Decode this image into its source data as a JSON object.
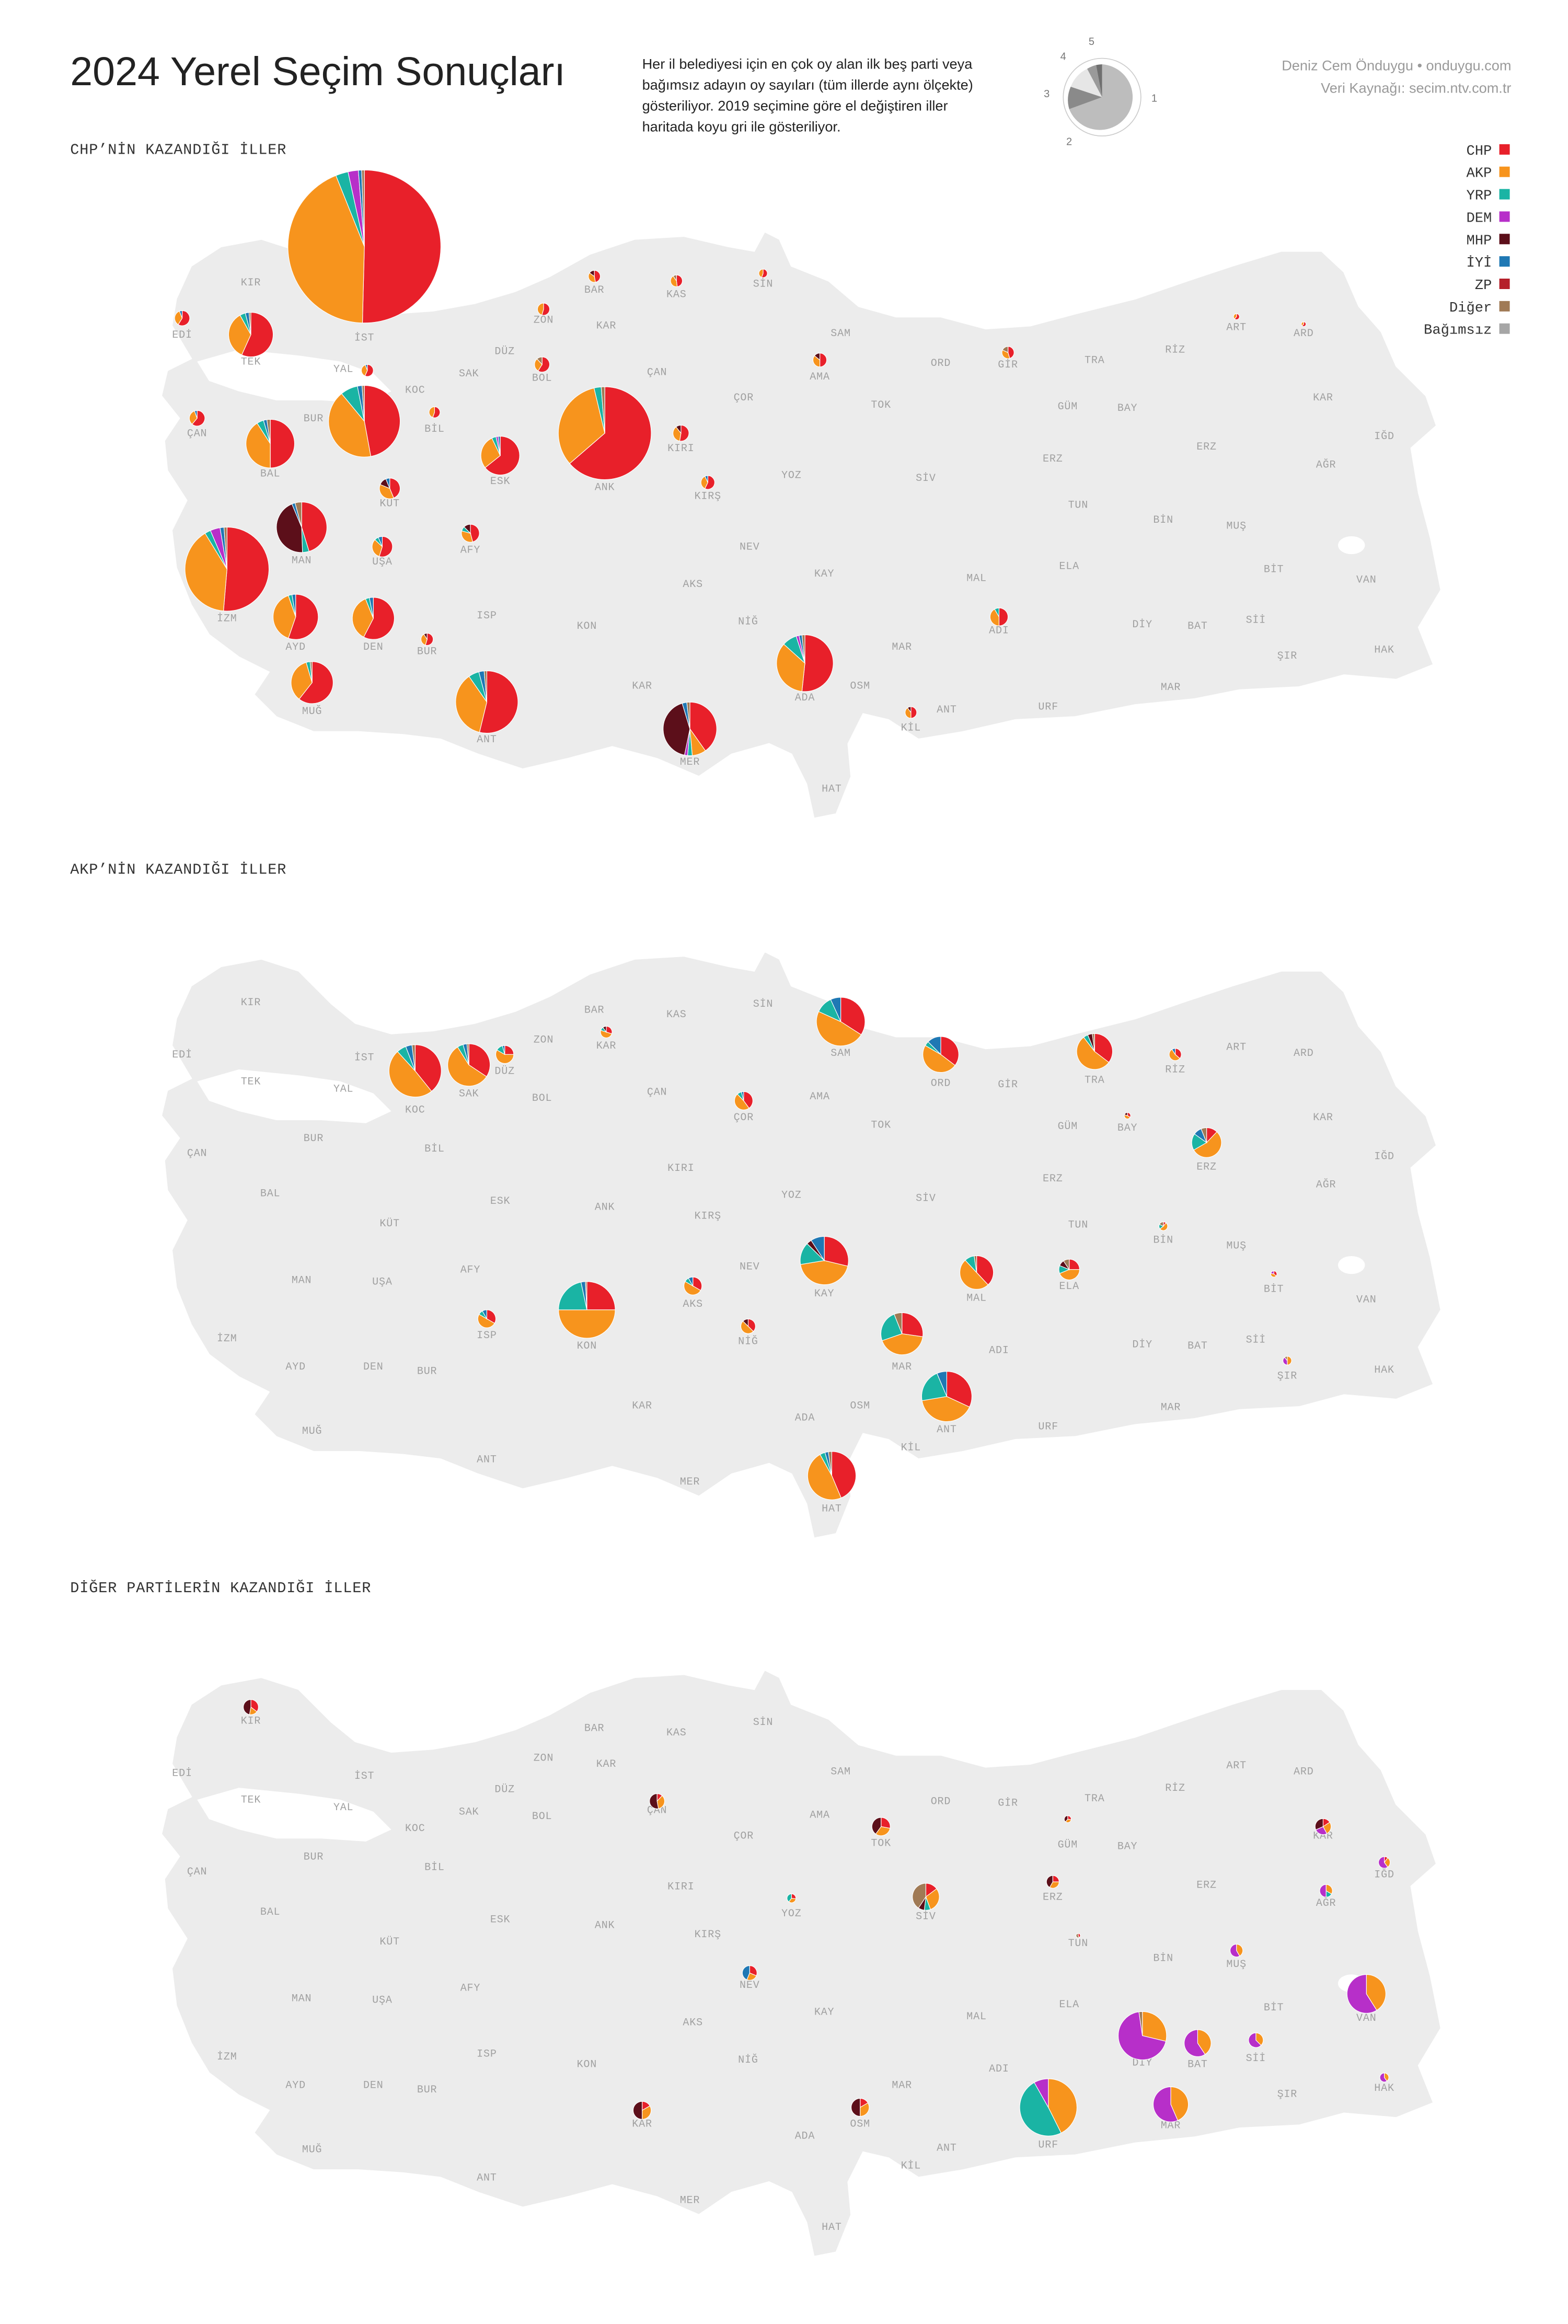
{
  "header": {
    "title": "2024 Yerel Seçim Sonuçları",
    "description": [
      "Her il belediyesi için en çok oy alan ilk beş parti veya",
      "bağımsız adayın oy sayıları (tüm illerde aynı ölçekte)",
      "gösteriliyor. 2019 seçimine göre el değiştiren iller",
      "haritada koyu gri ile gösteriliyor."
    ],
    "credits": [
      "Deniz Cem Önduygu • onduygu.com",
      "Veri Kaynağı: secim.ntv.com.tr"
    ],
    "key_labels": [
      "1",
      "2",
      "3",
      "4",
      "5"
    ]
  },
  "legend": [
    {
      "name": "CHP",
      "color": "#e8202a"
    },
    {
      "name": "AKP",
      "color": "#f7941d"
    },
    {
      "name": "YRP",
      "color": "#1ab4a4"
    },
    {
      "name": "DEM",
      "color": "#b72fc9"
    },
    {
      "name": "MHP",
      "color": "#5c0f1a"
    },
    {
      "name": "İYİ",
      "color": "#1f78b4"
    },
    {
      "name": "ZP",
      "color": "#b5202a"
    },
    {
      "name": "Diğer",
      "color": "#a07a55"
    },
    {
      "name": "Bağımsız",
      "color": "#a6a6a6"
    }
  ],
  "provinces": [
    "EDİ",
    "KIR",
    "TEK",
    "İST",
    "YAL",
    "KOC",
    "SAK",
    "DÜZ",
    "ZON",
    "BAR",
    "KAR",
    "KAS",
    "SİN",
    "SAM",
    "ORD",
    "GİR",
    "TRA",
    "RİZ",
    "ART",
    "ARD",
    "BOL",
    "ÇAN",
    "AMA",
    "TOK",
    "ÇOR",
    "BUR",
    "BİL",
    "ÇAN",
    "BAL",
    "KÜT",
    "ESK",
    "ANK",
    "KIRI",
    "YOZ",
    "SİV",
    "GÜM",
    "BAY",
    "KAR",
    "IĞD",
    "ERZ",
    "AĞR",
    "ERZ",
    "TUN",
    "BİN",
    "MUŞ",
    "BİT",
    "VAN",
    "MAN",
    "UŞA",
    "AFY",
    "KIRŞ",
    "NEV",
    "KAY",
    "AKS",
    "MAL",
    "ELA",
    "ADI",
    "DİY",
    "BAT",
    "Sİİ",
    "ŞIR",
    "HAK",
    "İZM",
    "AYD",
    "DEN",
    "BUR",
    "ISP",
    "KON",
    "NİĞ",
    "KAR",
    "ADA",
    "OSM",
    "MAR",
    "ANT",
    "KİL",
    "URF",
    "HAT",
    "MER",
    "ANT",
    "MUĞ",
    "MAR"
  ],
  "maps": [
    {
      "title": "CHP’NİN KAZANDIĞI İLLER",
      "pies": [
        [
          4400,
          3800,
          230,
          190,
          0,
          60,
          0,
          50,
          0
        ],
        [
          2050,
          1050,
          80,
          0,
          0,
          0,
          0,
          40,
          0
        ],
        [
          1350,
          1050,
          60,
          100,
          0,
          40,
          0,
          30,
          0
        ],
        [
          900,
          800,
          150,
          0,
          0,
          40,
          0,
          20,
          0
        ],
        [
          780,
          530,
          80,
          0,
          0,
          40,
          0,
          20,
          0
        ],
        [
          620,
          420,
          100,
          20,
          0,
          20,
          0,
          20,
          0
        ],
        [
          430,
          0,
          40,
          0,
          420,
          20,
          0,
          40,
          0
        ],
        [
          430,
          90,
          30,
          20,
          450,
          30,
          0,
          20,
          0
        ],
        [
          440,
          360,
          40,
          0,
          0,
          20,
          0,
          20,
          0
        ],
        [
          420,
          300,
          20,
          0,
          0,
          20,
          0,
          0,
          0
        ],
        [
          380,
          240,
          20,
          0,
          0,
          20,
          0,
          0,
          0
        ],
        [
          400,
          230,
          20,
          0,
          0,
          0,
          0,
          10,
          0
        ],
        [
          420,
          260,
          30,
          0,
          0,
          20,
          0,
          10,
          0
        ],
        [
          360,
          160,
          20,
          10,
          0,
          10,
          0,
          0,
          0
        ],
        [
          85,
          50,
          10,
          0,
          0,
          10,
          0,
          0,
          0
        ],
        [
          70,
          60,
          0,
          0,
          20,
          10,
          0,
          0,
          0
        ],
        [
          55,
          40,
          10,
          0,
          15,
          0,
          0,
          0,
          0
        ],
        [
          25,
          20,
          0,
          0,
          0,
          0,
          0,
          0,
          0
        ],
        [
          30,
          20,
          0,
          0,
          5,
          0,
          0,
          0,
          0
        ],
        [
          50,
          35,
          0,
          0,
          10,
          0,
          0,
          0,
          0
        ],
        [
          40,
          25,
          0,
          0,
          0,
          5,
          0,
          0,
          0
        ],
        [
          50,
          30,
          0,
          0,
          0,
          5,
          0,
          0,
          0
        ],
        [
          55,
          30,
          0,
          0,
          0,
          5,
          0,
          0,
          0
        ],
        [
          30,
          20,
          0,
          0,
          0,
          3,
          0,
          0,
          0
        ],
        [
          30,
          25,
          0,
          0,
          0,
          0,
          0,
          0,
          0
        ],
        [
          25,
          20,
          0,
          0,
          8,
          0,
          0,
          0,
          0
        ],
        [
          25,
          22,
          0,
          0,
          0,
          0,
          0,
          5,
          0
        ],
        [
          15,
          12,
          0,
          0,
          0,
          0,
          0,
          0,
          0
        ],
        [
          50,
          25,
          0,
          0,
          0,
          0,
          0,
          10,
          0
        ],
        [
          35,
          25,
          0,
          0,
          10,
          0,
          0,
          0,
          0
        ],
        [
          25,
          20,
          0,
          0,
          0,
          0,
          0,
          10,
          0
        ],
        [
          8,
          5,
          0,
          0,
          0,
          0,
          0,
          0,
          0
        ],
        [
          5,
          3,
          0,
          0,
          0,
          0,
          0,
          0,
          0
        ],
        [
          60,
          50,
          10,
          0,
          0,
          0,
          0,
          0,
          0
        ],
        [
          25,
          20,
          0,
          0,
          5,
          0,
          0,
          0,
          0
        ]
      ]
    },
    {
      "title": "AKP’NİN KAZANDIĞI İLLER",
      "pies": [
        [
          400,
          500,
          60,
          0,
          0,
          40,
          0,
          20,
          0
        ],
        [
          230,
          380,
          30,
          0,
          0,
          20,
          0,
          10,
          0
        ],
        [
          30,
          70,
          15,
          0,
          0,
          5,
          0,
          0,
          0
        ],
        [
          15,
          25,
          5,
          0,
          5,
          0,
          0,
          0,
          0
        ],
        [
          300,
          420,
          100,
          0,
          0,
          60,
          0,
          0,
          0
        ],
        [
          170,
          230,
          20,
          0,
          0,
          60,
          0,
          0,
          0
        ],
        [
          170,
          260,
          20,
          0,
          20,
          0,
          0,
          10,
          0
        ],
        [
          20,
          30,
          0,
          0,
          0,
          5,
          0,
          0,
          0
        ],
        [
          50,
          60,
          10,
          0,
          0,
          5,
          0,
          0,
          0
        ],
        [
          5,
          7,
          0,
          0,
          3,
          0,
          0,
          0,
          0
        ],
        [
          40,
          180,
          60,
          0,
          0,
          30,
          0,
          20,
          0
        ],
        [
          250,
          380,
          130,
          0,
          30,
          80,
          0,
          0,
          0
        ],
        [
          160,
          210,
          40,
          0,
          0,
          0,
          0,
          10,
          0
        ],
        [
          40,
          70,
          20,
          0,
          15,
          0,
          0,
          15,
          0
        ],
        [
          40,
          60,
          10,
          0,
          0,
          10,
          0,
          0,
          0
        ],
        [
          30,
          40,
          0,
          0,
          10,
          0,
          0,
          0,
          0
        ],
        [
          300,
          600,
          260,
          0,
          0,
          30,
          0,
          10,
          0
        ],
        [
          40,
          60,
          10,
          0,
          0,
          10,
          0,
          0,
          0
        ],
        [
          180,
          280,
          160,
          0,
          0,
          0,
          0,
          40,
          0
        ],
        [
          300,
          380,
          200,
          0,
          0,
          60,
          0,
          0,
          0
        ],
        [
          380,
          420,
          30,
          0,
          0,
          20,
          0,
          20,
          0
        ],
        [
          3,
          15,
          5,
          0,
          0,
          0,
          0,
          5,
          0
        ],
        [
          5,
          6,
          0,
          3,
          0,
          0,
          0,
          0,
          0
        ],
        [
          0,
          14,
          0,
          11,
          0,
          0,
          0,
          3,
          0
        ]
      ]
    },
    {
      "title": "DİĞER PARTİLERİN KAZANDIĞI İLLER",
      "pies": [
        [
          30,
          15,
          0,
          0,
          40,
          0,
          0,
          0,
          0
        ],
        [
          10,
          30,
          0,
          0,
          45,
          0,
          0,
          0,
          0
        ],
        [
          35,
          40,
          0,
          0,
          50,
          0,
          0,
          0,
          0
        ],
        [
          5,
          6,
          0,
          0,
          7,
          0,
          0,
          0,
          0
        ],
        [
          15,
          20,
          0,
          0,
          25,
          0,
          0,
          0,
          0
        ],
        [
          40,
          80,
          20,
          0,
          20,
          0,
          0,
          110,
          0
        ],
        [
          8,
          10,
          12,
          0,
          0,
          0,
          0,
          0,
          0
        ],
        [
          3,
          0,
          0,
          0,
          0,
          0,
          0,
          4,
          0
        ],
        [
          25,
          20,
          0,
          0,
          0,
          35,
          0,
          0,
          0
        ],
        [
          15,
          25,
          0,
          25,
          30,
          0,
          0,
          0,
          0
        ],
        [
          5,
          15,
          0,
          30,
          0,
          0,
          0,
          0,
          0
        ],
        [
          0,
          20,
          10,
          30,
          0,
          0,
          0,
          0,
          0
        ],
        [
          0,
          25,
          0,
          35,
          0,
          0,
          0,
          0,
          0
        ],
        [
          0,
          230,
          0,
          330,
          0,
          0,
          0,
          0,
          0
        ],
        [
          0,
          250,
          0,
          600,
          0,
          0,
          0,
          20,
          0
        ],
        [
          0,
          110,
          0,
          160,
          0,
          0,
          0,
          0,
          0
        ],
        [
          0,
          30,
          0,
          50,
          0,
          0,
          0,
          0,
          0
        ],
        [
          0,
          12,
          0,
          18,
          0,
          0,
          0,
          0,
          0
        ],
        [
          0,
          200,
          0,
          260,
          0,
          0,
          0,
          0,
          0
        ],
        [
          0,
          520,
          600,
          100,
          0,
          0,
          0,
          0,
          0
        ],
        [
          20,
          40,
          0,
          0,
          60,
          0,
          0,
          0,
          0
        ],
        [
          20,
          40,
          0,
          0,
          60,
          0,
          0,
          0,
          0
        ]
      ]
    }
  ]
}
